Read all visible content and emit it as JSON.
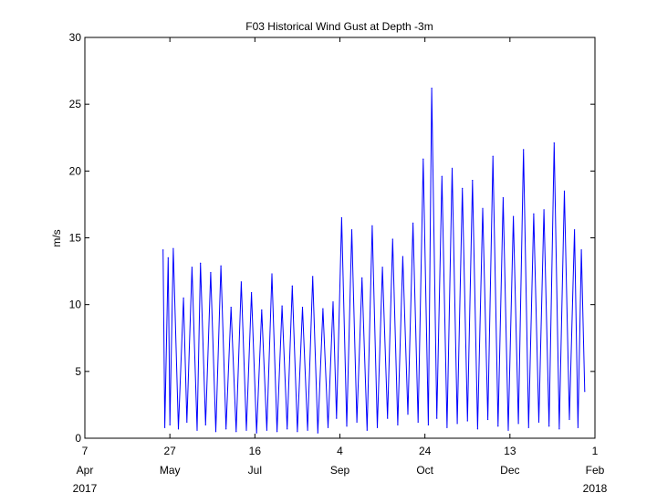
{
  "chart_data": {
    "type": "line",
    "title": "F03 Historical Wind Gust at Depth -3m",
    "xlabel": "",
    "ylabel": "m/s",
    "ylim": [
      0,
      30
    ],
    "xlim": [
      "2017-04-07",
      "2018-02-01"
    ],
    "yticks": [
      0,
      5,
      10,
      15,
      20,
      25,
      30
    ],
    "xticks": [
      {
        "date": "2017-04-07",
        "day": "7",
        "month": "Apr",
        "year": "2017"
      },
      {
        "date": "2017-05-27",
        "day": "27",
        "month": "May",
        "year": ""
      },
      {
        "date": "2017-07-16",
        "day": "16",
        "month": "Jul",
        "year": ""
      },
      {
        "date": "2017-09-04",
        "day": "4",
        "month": "Sep",
        "year": ""
      },
      {
        "date": "2017-10-24",
        "day": "24",
        "month": "Oct",
        "year": ""
      },
      {
        "date": "2017-12-13",
        "day": "13",
        "month": "Dec",
        "year": ""
      },
      {
        "date": "2018-02-01",
        "day": "1",
        "month": "Feb",
        "year": "2018"
      }
    ],
    "grid": false,
    "series_color": "#0000ff",
    "series": [
      {
        "name": "",
        "x": [
          "2017-05-23",
          "2017-05-24",
          "2017-05-26",
          "2017-05-27",
          "2017-05-29",
          "2017-06-01",
          "2017-06-04",
          "2017-06-06",
          "2017-06-09",
          "2017-06-12",
          "2017-06-14",
          "2017-06-17",
          "2017-06-20",
          "2017-06-23",
          "2017-06-26",
          "2017-06-29",
          "2017-07-02",
          "2017-07-05",
          "2017-07-08",
          "2017-07-11",
          "2017-07-14",
          "2017-07-17",
          "2017-07-20",
          "2017-07-23",
          "2017-07-26",
          "2017-07-29",
          "2017-08-01",
          "2017-08-04",
          "2017-08-07",
          "2017-08-10",
          "2017-08-13",
          "2017-08-16",
          "2017-08-19",
          "2017-08-22",
          "2017-08-25",
          "2017-08-28",
          "2017-08-31",
          "2017-09-02",
          "2017-09-05",
          "2017-09-08",
          "2017-09-11",
          "2017-09-14",
          "2017-09-17",
          "2017-09-20",
          "2017-09-23",
          "2017-09-26",
          "2017-09-29",
          "2017-10-02",
          "2017-10-05",
          "2017-10-08",
          "2017-10-11",
          "2017-10-14",
          "2017-10-17",
          "2017-10-20",
          "2017-10-23",
          "2017-10-26",
          "2017-10-28",
          "2017-10-31",
          "2017-11-03",
          "2017-11-06",
          "2017-11-09",
          "2017-11-12",
          "2017-11-15",
          "2017-11-18",
          "2017-11-21",
          "2017-11-24",
          "2017-11-27",
          "2017-11-30",
          "2017-12-03",
          "2017-12-06",
          "2017-12-09",
          "2017-12-12",
          "2017-12-15",
          "2017-12-18",
          "2017-12-21",
          "2017-12-24",
          "2017-12-27",
          "2017-12-30",
          "2018-01-02",
          "2018-01-05",
          "2018-01-08",
          "2018-01-11",
          "2018-01-14",
          "2018-01-17",
          "2018-01-20",
          "2018-01-22",
          "2018-01-24",
          "2018-01-26"
        ],
        "y": [
          14.1,
          0.8,
          13.5,
          1.0,
          14.2,
          0.7,
          10.5,
          1.2,
          12.8,
          0.6,
          13.1,
          1.0,
          12.4,
          0.5,
          12.9,
          0.7,
          9.8,
          0.5,
          11.7,
          0.6,
          10.9,
          0.4,
          9.6,
          0.6,
          12.3,
          0.5,
          9.9,
          0.7,
          11.4,
          0.5,
          9.8,
          0.6,
          12.1,
          0.4,
          9.7,
          0.8,
          10.2,
          1.5,
          16.5,
          0.9,
          15.6,
          1.2,
          12.0,
          0.6,
          15.9,
          0.8,
          12.8,
          1.5,
          14.9,
          1.0,
          13.6,
          1.8,
          16.1,
          1.2,
          20.9,
          1.0,
          26.2,
          1.5,
          19.6,
          0.8,
          20.2,
          1.1,
          18.7,
          1.3,
          19.3,
          0.7,
          17.2,
          1.4,
          21.1,
          0.9,
          18.0,
          0.6,
          16.6,
          1.1,
          21.6,
          0.8,
          16.8,
          1.2,
          17.1,
          0.9,
          22.1,
          0.7,
          18.5,
          1.4,
          15.6,
          0.8,
          14.1,
          3.5
        ]
      }
    ]
  }
}
